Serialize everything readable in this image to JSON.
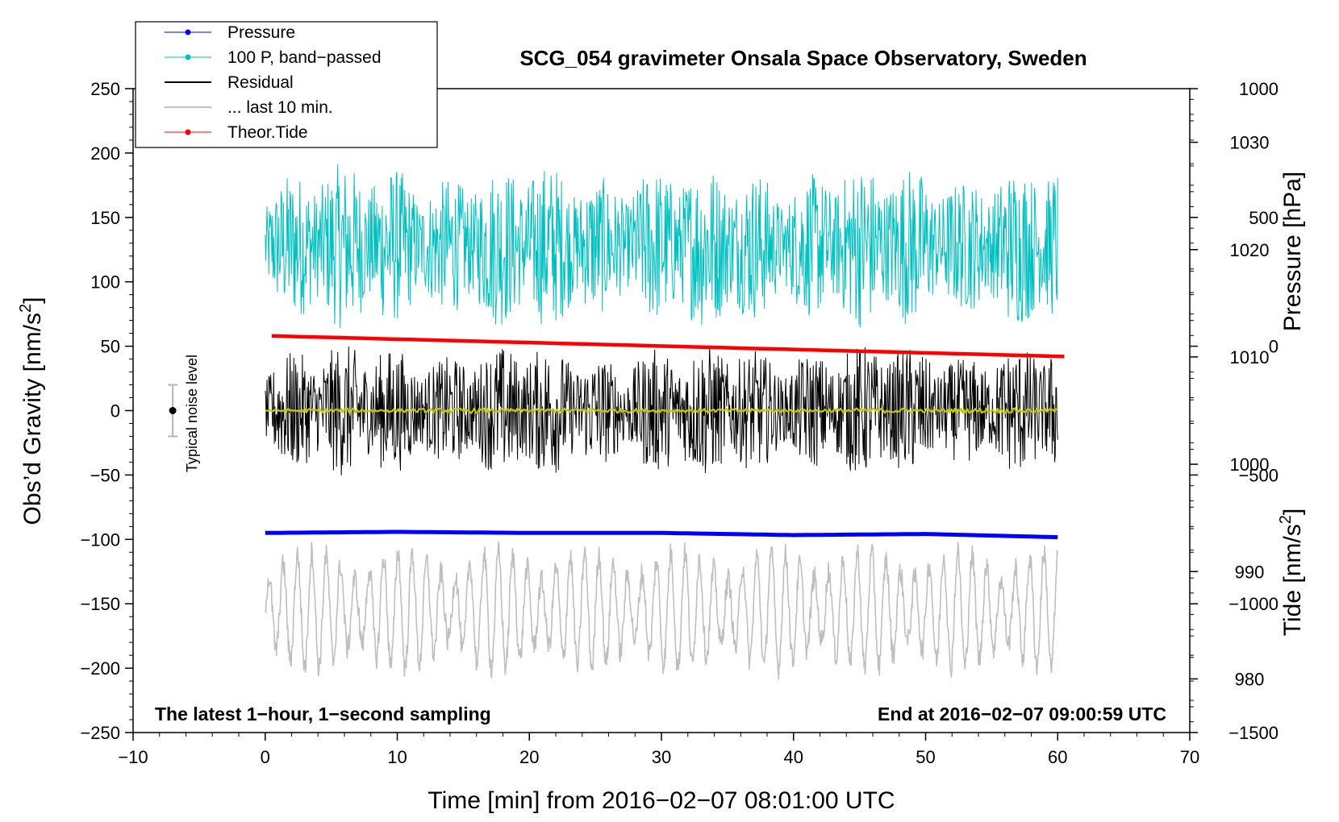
{
  "chart_data": {
    "type": "line",
    "title": "SCG_054 gravimeter Onsala Space Observatory, Sweden",
    "xlabel": "Time [min] from 2016−02−07 08:01:00 UTC",
    "ylabel_left": "Obs’d Gravity [nm/s",
    "ylabel_left_sup": "2",
    "ylabel_left_end": "]",
    "ylabel_right_top": "Pressure [hPa]",
    "ylabel_right_bottom": "Tide [nm/s",
    "ylabel_right_bottom_sup": "2",
    "ylabel_right_bottom_end": "]",
    "xlim": [
      -10,
      70
    ],
    "ylim": [
      -250,
      250
    ],
    "pressure_axis_range": [
      975,
      1035
    ],
    "tide_axis_range": [
      -1500,
      1000
    ],
    "x_ticks": [
      -10,
      0,
      10,
      20,
      30,
      40,
      50,
      60,
      70
    ],
    "x_tick_labels": [
      "−10",
      "0",
      "10",
      "20",
      "30",
      "40",
      "50",
      "60",
      "70"
    ],
    "y_ticks": [
      250,
      200,
      150,
      100,
      50,
      0,
      -50,
      -100,
      -150,
      -200,
      -250
    ],
    "y_tick_labels": [
      "250",
      "200",
      "150",
      "100",
      "50",
      "0",
      "−50",
      "−100",
      "−150",
      "−200",
      "−250"
    ],
    "pressure_ticks": [
      1030,
      1020,
      1010,
      1000,
      990,
      980
    ],
    "pressure_tick_labels": [
      "1030",
      "1020",
      "1010",
      "1000",
      "990",
      "980"
    ],
    "tide_ticks": [
      1000,
      500,
      0,
      -500,
      -1000,
      -1500
    ],
    "tide_tick_labels": [
      "1000",
      "500",
      "0",
      "−500",
      "−1000",
      "−1500"
    ],
    "legend": [
      {
        "label": "Pressure",
        "color": "#0000ff",
        "marker": true
      },
      {
        "label": "100 P, band−passed",
        "color": "#00c0c0",
        "marker": true
      },
      {
        "label": "Residual",
        "color": "#000000",
        "marker": false
      },
      {
        "label": "... last 10 min.",
        "color": "#bfbfbf",
        "marker": false
      },
      {
        "label": "Theor.Tide",
        "color": "#ff0000",
        "marker": true
      }
    ],
    "annotations": {
      "bottom_left": "The latest 1−hour, 1−second sampling",
      "bottom_right": "End at 2016−02−07 09:00:59 UTC",
      "noise_label": "Typical noise level"
    },
    "noise_bar": {
      "x": -7,
      "center": 0,
      "half_range": 20
    },
    "series": [
      {
        "name": "Pressure",
        "color": "#0000ff",
        "axis": "pressure",
        "x": [
          0,
          10,
          20,
          30,
          40,
          50,
          60
        ],
        "values": [
          993.6,
          993.7,
          993.6,
          993.6,
          993.4,
          993.5,
          993.2
        ]
      },
      {
        "name": "100 P, band-passed",
        "color": "#00c0c0",
        "axis": "gravity",
        "x_range": [
          0,
          60
        ],
        "center": 128,
        "amplitude": 50,
        "kind": "noise"
      },
      {
        "name": "Residual",
        "color": "#000000",
        "axis": "gravity",
        "x_range": [
          0,
          60
        ],
        "center": 0,
        "amplitude": 40,
        "kind": "noise"
      },
      {
        "name": "Residual mean",
        "color": "#c8c800",
        "axis": "gravity",
        "x_range": [
          0,
          60
        ],
        "center": 0,
        "amplitude": 1.5,
        "kind": "noise"
      },
      {
        "name": "... last 10 min.",
        "color": "#bfbfbf",
        "axis": "gravity",
        "x_range": [
          0,
          60
        ],
        "center": -155,
        "amplitude": 45,
        "kind": "wave"
      },
      {
        "name": "Theor.Tide",
        "color": "#ff0000",
        "axis": "tide",
        "x": [
          0.5,
          60.5
        ],
        "values": [
          40,
          -40
        ]
      }
    ]
  }
}
